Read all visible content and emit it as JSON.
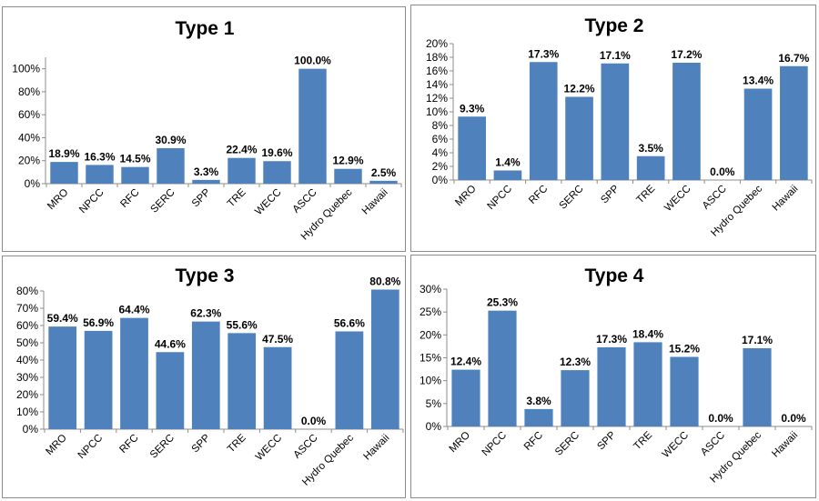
{
  "chart_data": [
    {
      "type": "bar",
      "title": "Type 1",
      "categories": [
        "MRO",
        "NPCC",
        "RFC",
        "SERC",
        "SPP",
        "TRE",
        "WECC",
        "ASCC",
        "Hydro Quebec",
        "Hawaii"
      ],
      "values": [
        18.9,
        16.3,
        14.5,
        30.9,
        3.3,
        22.4,
        19.6,
        100.0,
        12.9,
        2.5
      ],
      "value_labels": [
        "18.9%",
        "16.3%",
        "14.5%",
        "30.9%",
        "3.3%",
        "22.4%",
        "19.6%",
        "100.0%",
        "12.9%",
        "2.5%"
      ],
      "ylim": [
        0,
        110
      ],
      "yticks": [
        0,
        20,
        40,
        60,
        80,
        100
      ],
      "ytick_labels": [
        "0%",
        "20%",
        "40%",
        "60%",
        "80%",
        "100%"
      ],
      "grid": false,
      "bar_color": "#4f81bd"
    },
    {
      "type": "bar",
      "title": "Type 2",
      "categories": [
        "MRO",
        "NPCC",
        "RFC",
        "SERC",
        "SPP",
        "TRE",
        "WECC",
        "ASCC",
        "Hydro Quebec",
        "Hawaii"
      ],
      "values": [
        9.3,
        1.4,
        17.3,
        12.2,
        17.1,
        3.5,
        17.2,
        0.0,
        13.4,
        16.7
      ],
      "value_labels": [
        "9.3%",
        "1.4%",
        "17.3%",
        "12.2%",
        "17.1%",
        "3.5%",
        "17.2%",
        "0.0%",
        "13.4%",
        "16.7%"
      ],
      "ylim": [
        0,
        20
      ],
      "yticks": [
        0,
        2,
        4,
        6,
        8,
        10,
        12,
        14,
        16,
        18,
        20
      ],
      "ytick_labels": [
        "0%",
        "2%",
        "4%",
        "6%",
        "8%",
        "10%",
        "12%",
        "14%",
        "16%",
        "18%",
        "20%"
      ],
      "grid": false,
      "bar_color": "#4f81bd"
    },
    {
      "type": "bar",
      "title": "Type 3",
      "categories": [
        "MRO",
        "NPCC",
        "RFC",
        "SERC",
        "SPP",
        "TRE",
        "WECC",
        "ASCC",
        "Hydro Quebec",
        "Hawaii"
      ],
      "values": [
        59.4,
        56.9,
        64.4,
        44.6,
        62.3,
        55.6,
        47.5,
        0.0,
        56.6,
        80.8
      ],
      "value_labels": [
        "59.4%",
        "56.9%",
        "64.4%",
        "44.6%",
        "62.3%",
        "55.6%",
        "47.5%",
        "0.0%",
        "56.6%",
        "80.8%"
      ],
      "ylim": [
        0,
        80
      ],
      "yticks": [
        0,
        10,
        20,
        30,
        40,
        50,
        60,
        70,
        80
      ],
      "ytick_labels": [
        "0%",
        "10%",
        "20%",
        "30%",
        "40%",
        "50%",
        "60%",
        "70%",
        "80%"
      ],
      "grid": false,
      "bar_color": "#4f81bd"
    },
    {
      "type": "bar",
      "title": "Type 4",
      "categories": [
        "MRO",
        "NPCC",
        "RFC",
        "SERC",
        "SPP",
        "TRE",
        "WECC",
        "ASCC",
        "Hydro Quebec",
        "Hawaii"
      ],
      "values": [
        12.4,
        25.3,
        3.8,
        12.3,
        17.3,
        18.4,
        15.2,
        0.0,
        17.1,
        0.0
      ],
      "value_labels": [
        "12.4%",
        "25.3%",
        "3.8%",
        "12.3%",
        "17.3%",
        "18.4%",
        "15.2%",
        "0.0%",
        "17.1%",
        "0.0%"
      ],
      "ylim": [
        0,
        30
      ],
      "yticks": [
        0,
        5,
        10,
        15,
        20,
        25,
        30
      ],
      "ytick_labels": [
        "0%",
        "5%",
        "10%",
        "15%",
        "20%",
        "25%",
        "30%"
      ],
      "grid": false,
      "bar_color": "#4f81bd"
    }
  ]
}
